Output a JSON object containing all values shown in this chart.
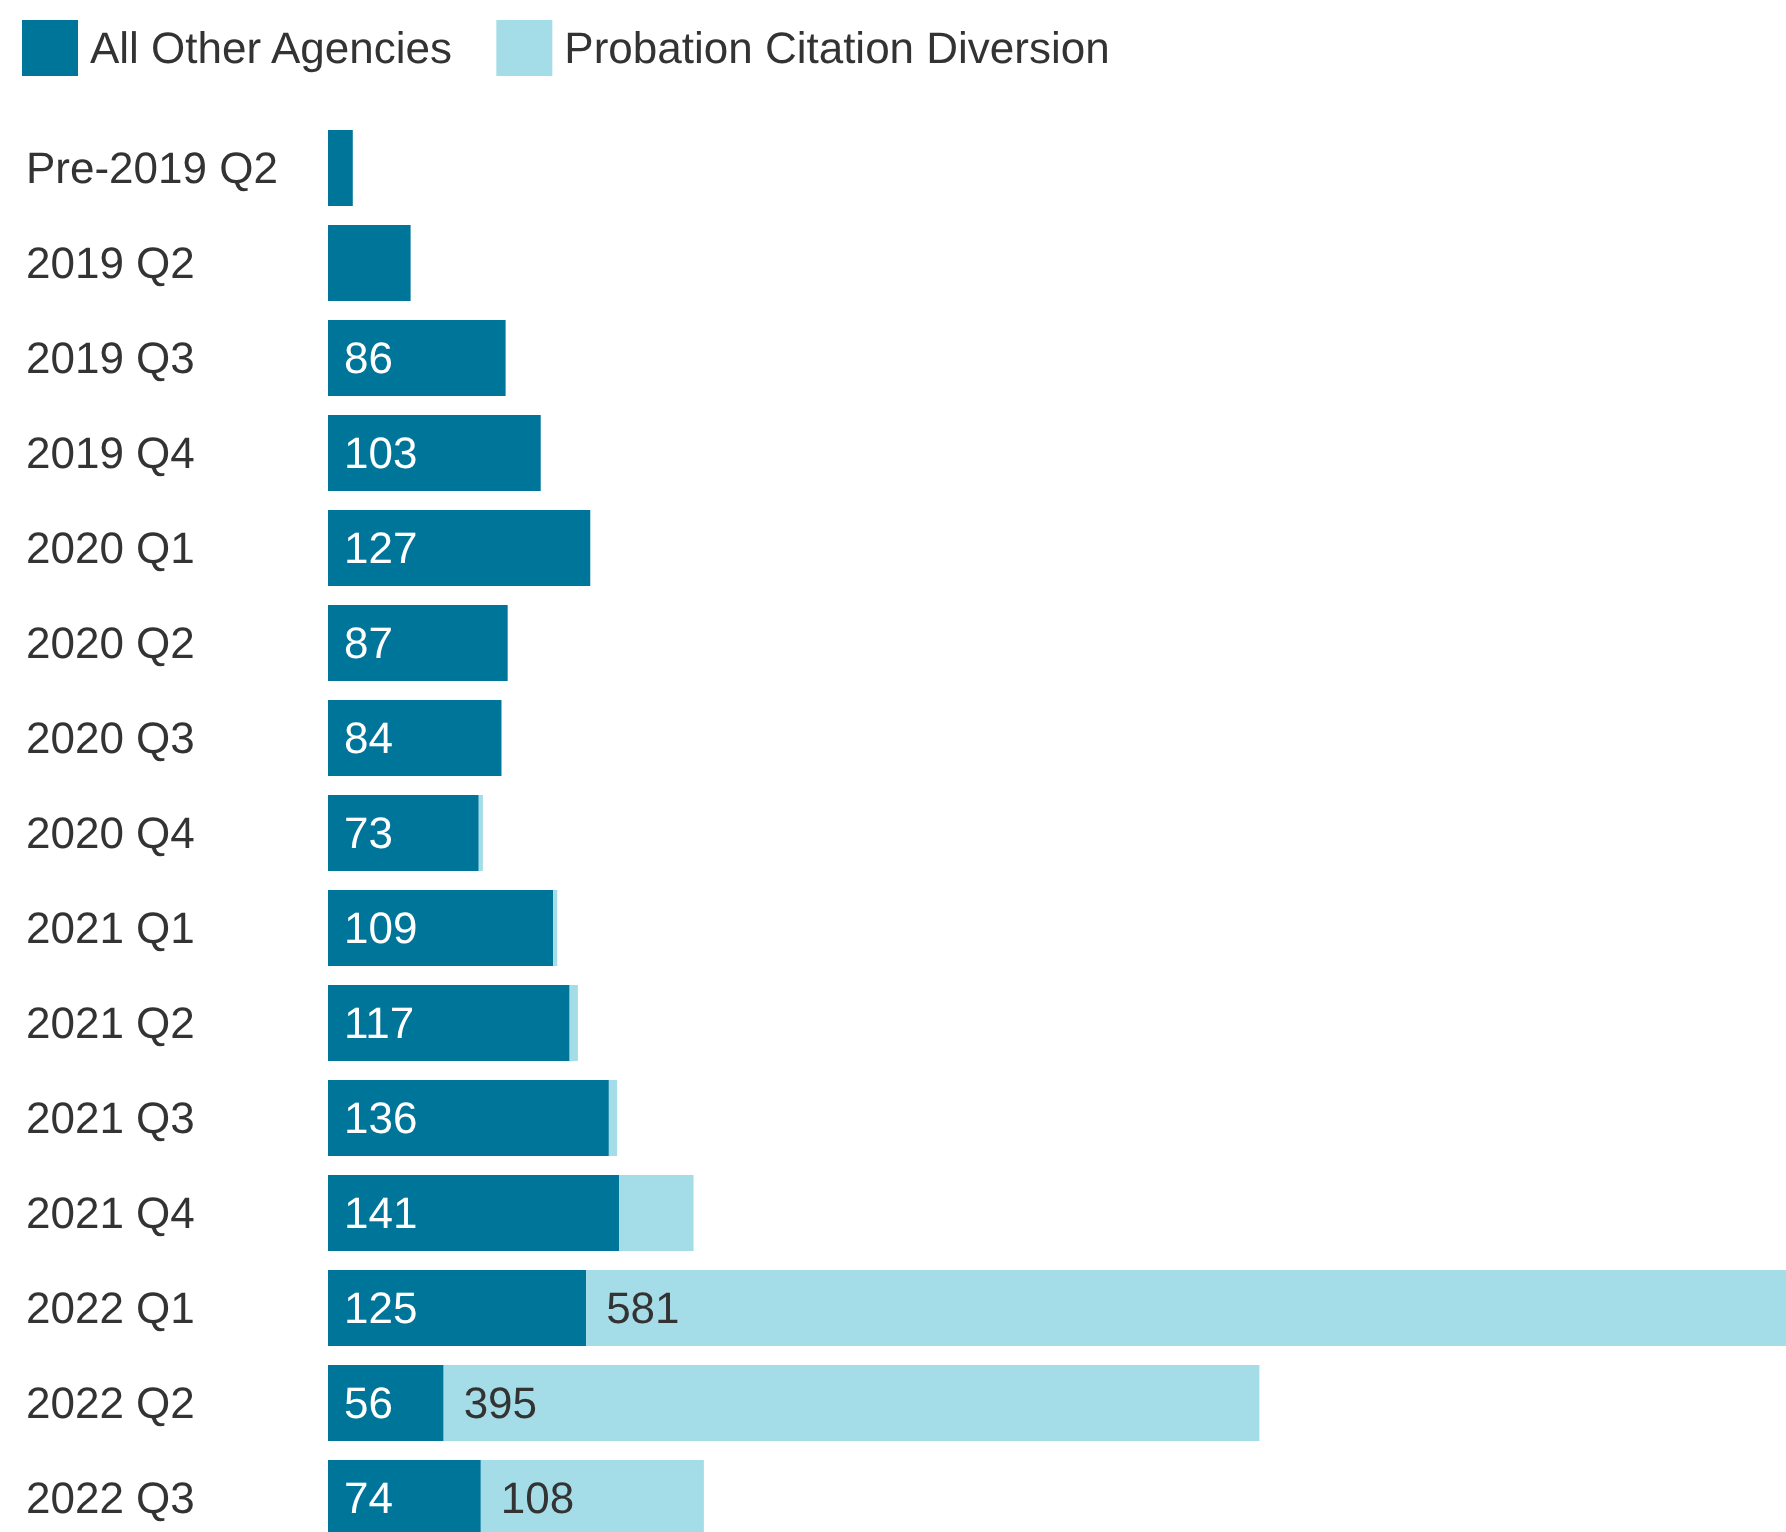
{
  "chart_data": {
    "type": "bar",
    "orientation": "horizontal",
    "stacked": true,
    "legend": "top left",
    "categories": [
      "Pre-2019 Q2",
      "2019 Q2",
      "2019 Q3",
      "2019 Q4",
      "2020 Q1",
      "2020 Q2",
      "2020 Q3",
      "2020 Q4",
      "2021 Q1",
      "2021 Q2",
      "2021 Q3",
      "2021 Q4",
      "2022 Q1",
      "2022 Q2",
      "2022 Q3"
    ],
    "series": [
      {
        "name": "All Other Agencies",
        "color": "#00759a",
        "values": [
          12,
          40,
          86,
          103,
          127,
          87,
          84,
          73,
          109,
          117,
          136,
          141,
          125,
          56,
          74
        ],
        "value_labels": [
          null,
          null,
          "86",
          "103",
          "127",
          "87",
          "84",
          "73",
          "109",
          "117",
          "136",
          "141",
          "125",
          "56",
          "74"
        ]
      },
      {
        "name": "Probation Citation Diversion",
        "color": "#a4dde8",
        "values": [
          null,
          null,
          null,
          null,
          null,
          null,
          null,
          2,
          2,
          4,
          4,
          36,
          581,
          395,
          108
        ],
        "value_labels": [
          null,
          null,
          null,
          null,
          null,
          null,
          null,
          null,
          null,
          null,
          null,
          null,
          "581",
          "395",
          "108"
        ]
      }
    ]
  }
}
